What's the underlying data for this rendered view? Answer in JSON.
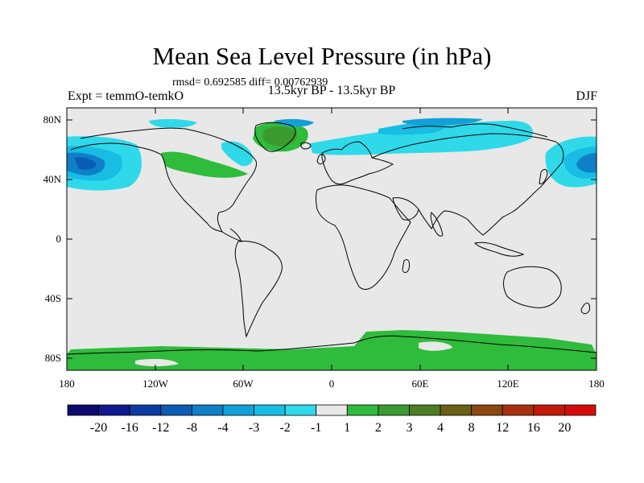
{
  "title": "Mean Sea Level Pressure (in hPa)",
  "stats": "rmsd= 0.692585 diff= 0.00762939",
  "experiment": "Expt = temmO-temkO",
  "period": "13.5kyr BP - 13.5kyr BP",
  "season": "DJF",
  "lat_labels": [
    "80N",
    "40N",
    "0",
    "40S",
    "80S"
  ],
  "lon_labels": [
    "180",
    "120W",
    "60W",
    "0",
    "60E",
    "120E",
    "180"
  ],
  "colorbar": {
    "labels": [
      "-20",
      "-16",
      "-12",
      "-8",
      "-4",
      "-3",
      "-2",
      "-1",
      "1",
      "2",
      "3",
      "4",
      "8",
      "12",
      "16",
      "20"
    ],
    "colors": [
      "#0b0b6e",
      "#101890",
      "#0c3aa3",
      "#0b5cb4",
      "#0f7fc8",
      "#12a0d8",
      "#17bde3",
      "#2fd9e9",
      "#e8e8e8",
      "#2fbb3c",
      "#3b9a2e",
      "#4d7d23",
      "#6b6014",
      "#8a4712",
      "#a9300e",
      "#c2190b",
      "#d60c0b"
    ]
  },
  "colors": {
    "background": "#e8e8e8",
    "coast": "#000000"
  }
}
